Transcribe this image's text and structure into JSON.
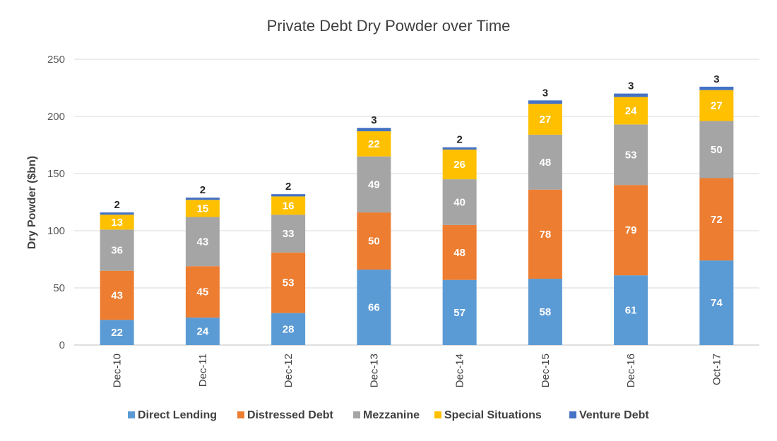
{
  "chart_data": {
    "type": "bar",
    "stacked": true,
    "title": "Private Debt Dry Powder over Time",
    "xlabel": "",
    "ylabel": "Dry Powder ($bn)",
    "ylim": [
      0,
      250
    ],
    "yticks": [
      0,
      50,
      100,
      150,
      200,
      250
    ],
    "grid": true,
    "legend": "bottom",
    "categories": [
      "Dec-10",
      "Dec-11",
      "Dec-12",
      "Dec-13",
      "Dec-14",
      "Dec-15",
      "Dec-16",
      "Oct-17"
    ],
    "series": [
      {
        "name": "Direct Lending",
        "color": "#5b9bd5",
        "values": [
          22,
          24,
          28,
          66,
          57,
          58,
          61,
          74
        ]
      },
      {
        "name": "Distressed Debt",
        "color": "#ed7d31",
        "values": [
          43,
          45,
          53,
          50,
          48,
          78,
          79,
          72
        ]
      },
      {
        "name": "Mezzanine",
        "color": "#a5a5a5",
        "values": [
          36,
          43,
          33,
          49,
          40,
          48,
          53,
          50
        ]
      },
      {
        "name": "Special Situations",
        "color": "#ffc000",
        "values": [
          13,
          15,
          16,
          22,
          26,
          27,
          24,
          27
        ]
      },
      {
        "name": "Venture Debt",
        "color": "#4472c4",
        "values": [
          2,
          2,
          2,
          3,
          2,
          3,
          3,
          3
        ]
      }
    ]
  }
}
